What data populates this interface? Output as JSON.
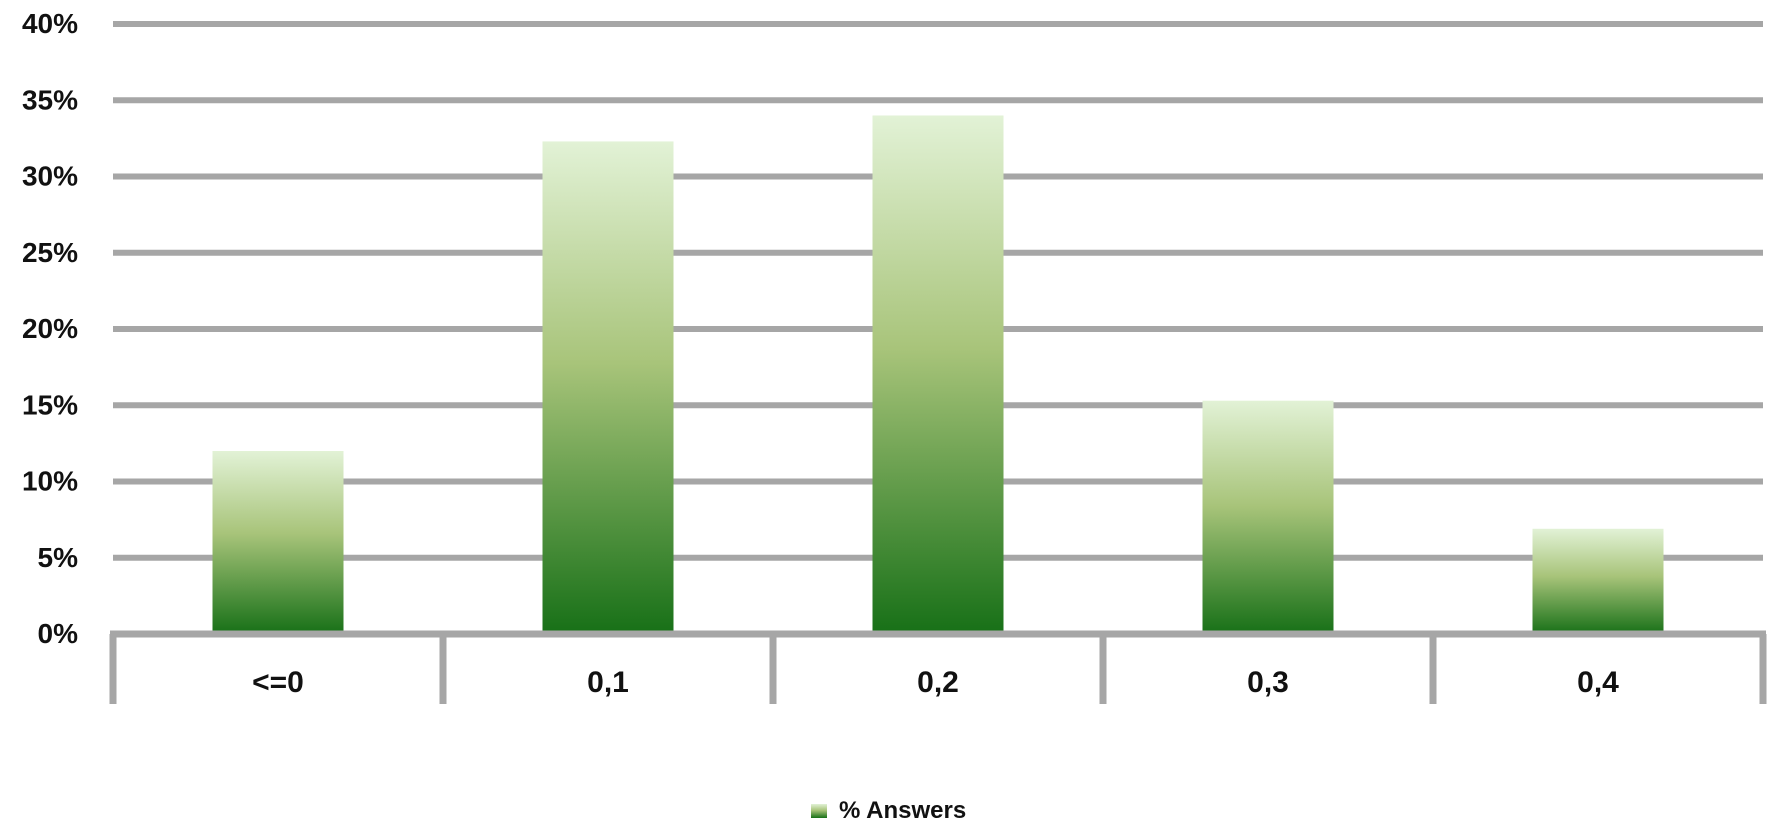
{
  "chart_data": {
    "type": "bar",
    "categories": [
      "<=0",
      "0,1",
      "0,2",
      "0,3",
      "0,4"
    ],
    "series": [
      {
        "name": "% Answers",
        "values": [
          12,
          32.3,
          34,
          15.3,
          6.9
        ]
      }
    ],
    "ylim": [
      0,
      40
    ],
    "yticks": [
      0,
      5,
      10,
      15,
      20,
      25,
      30,
      35,
      40
    ],
    "ytick_labels": [
      "0%",
      "5%",
      "10%",
      "15%",
      "20%",
      "25%",
      "30%",
      "35%",
      "40%"
    ],
    "grid": true,
    "legend": "bottom",
    "colors": {
      "bar_top": "#e2f2d6",
      "bar_mid": "#a8c47a",
      "bar_bottom": "#177017",
      "grid": "#a6a6a6",
      "axis": "#a6a6a6"
    }
  }
}
